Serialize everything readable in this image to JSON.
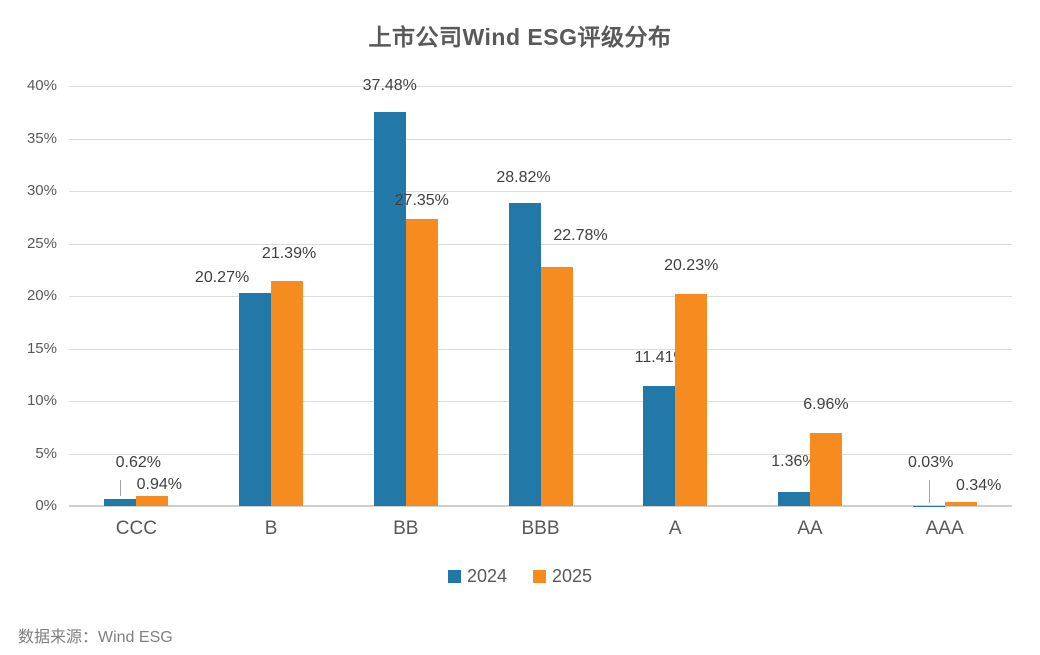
{
  "chart_data": {
    "type": "bar",
    "title": "上市公司Wind ESG评级分布",
    "categories": [
      "CCC",
      "B",
      "BB",
      "BBB",
      "A",
      "AA",
      "AAA"
    ],
    "series": [
      {
        "name": "2024",
        "color": "#2279a7",
        "values": [
          0.62,
          20.27,
          37.48,
          28.82,
          11.41,
          1.36,
          0.03
        ],
        "labels": [
          "0.62%",
          "20.27%",
          "37.48%",
          "28.82%",
          "11.41%",
          "1.36%",
          "0.03%"
        ]
      },
      {
        "name": "2025",
        "color": "#f68c20",
        "values": [
          0.94,
          21.39,
          27.35,
          22.78,
          20.23,
          6.96,
          0.34
        ],
        "labels": [
          "0.94%",
          "21.39%",
          "27.35%",
          "22.78%",
          "20.23%",
          "6.96%",
          "0.34%"
        ]
      }
    ],
    "ylim": [
      0,
      40
    ],
    "ytick_labels": [
      "0%",
      "5%",
      "10%",
      "15%",
      "20%",
      "25%",
      "30%",
      "35%",
      "40%"
    ],
    "grid": true,
    "legend_position": "bottom",
    "source_note": "数据来源：Wind ESG"
  },
  "colors": {
    "series_2024": "#2279a7",
    "series_2025": "#f68c20",
    "gridline": "#dcdcdc",
    "axis_text": "#595959",
    "value_label_text": "#404040",
    "title_text": "#595959",
    "note_text": "#7f7f7f"
  }
}
